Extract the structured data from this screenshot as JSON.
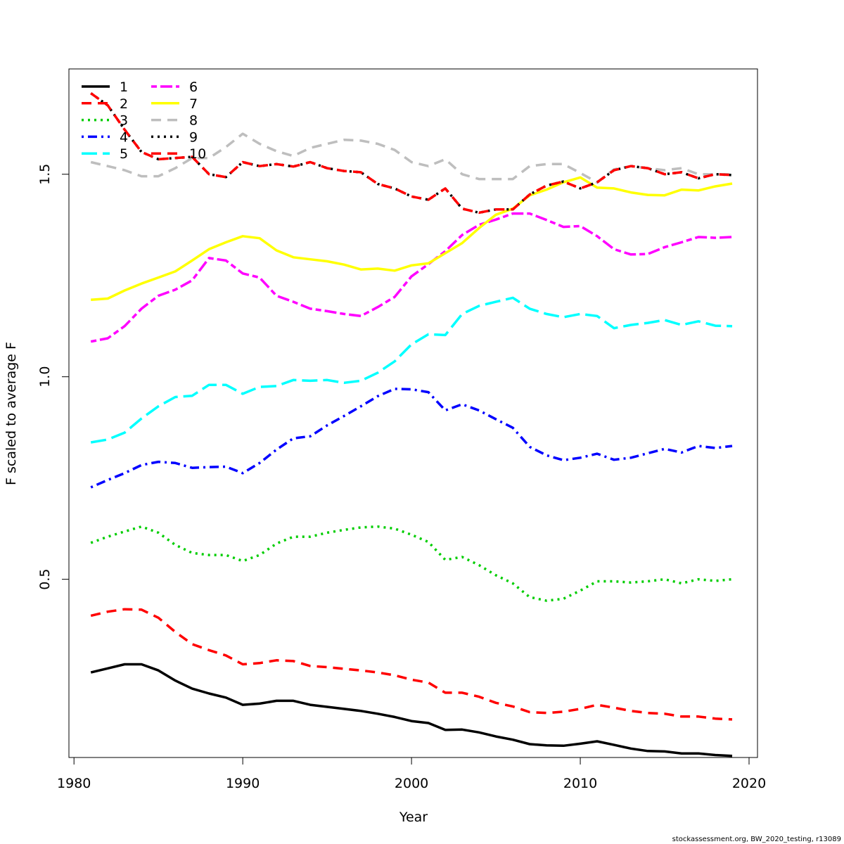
{
  "chart_data": {
    "type": "line",
    "title": "",
    "xlabel": "Year",
    "ylabel": "F scaled to average F",
    "xlim": [
      1979.7,
      2020.5
    ],
    "ylim": [
      0.06,
      1.76
    ],
    "x_ticks": [
      1980,
      1990,
      2000,
      2010,
      2020
    ],
    "y_ticks": [
      0.5,
      1.0,
      1.5
    ],
    "y_tick_labels": [
      "0.5",
      "1.0",
      "1.5"
    ],
    "grid": false,
    "legend_position": "top-left",
    "legend_columns": 2,
    "x": [
      1981,
      1982,
      1983,
      1984,
      1985,
      1986,
      1987,
      1988,
      1989,
      1990,
      1991,
      1992,
      1993,
      1994,
      1995,
      1996,
      1997,
      1998,
      1999,
      2000,
      2001,
      2002,
      2003,
      2004,
      2005,
      2006,
      2007,
      2008,
      2009,
      2010,
      2011,
      2012,
      2013,
      2014,
      2015,
      2016,
      2017,
      2018,
      2019
    ],
    "series": [
      {
        "name": "1",
        "color": "#000000",
        "dash": "solid",
        "values": [
          0.27,
          0.28,
          0.29,
          0.29,
          0.275,
          0.25,
          0.23,
          0.218,
          0.208,
          0.19,
          0.193,
          0.2,
          0.2,
          0.19,
          0.185,
          0.18,
          0.175,
          0.168,
          0.16,
          0.15,
          0.145,
          0.128,
          0.129,
          0.122,
          0.112,
          0.104,
          0.093,
          0.09,
          0.089,
          0.094,
          0.1,
          0.091,
          0.082,
          0.076,
          0.075,
          0.07,
          0.07,
          0.066,
          0.064
        ]
      },
      {
        "name": "2",
        "color": "#ff0000",
        "dash": "dashed",
        "values": [
          0.41,
          0.42,
          0.426,
          0.425,
          0.405,
          0.37,
          0.34,
          0.325,
          0.312,
          0.29,
          0.293,
          0.3,
          0.298,
          0.286,
          0.283,
          0.279,
          0.275,
          0.27,
          0.263,
          0.252,
          0.245,
          0.22,
          0.22,
          0.21,
          0.195,
          0.186,
          0.172,
          0.17,
          0.173,
          0.18,
          0.19,
          0.183,
          0.175,
          0.17,
          0.168,
          0.161,
          0.161,
          0.156,
          0.154
        ]
      },
      {
        "name": "3",
        "color": "#00cd00",
        "dash": "dotted",
        "values": [
          0.59,
          0.605,
          0.618,
          0.63,
          0.615,
          0.585,
          0.565,
          0.56,
          0.56,
          0.545,
          0.56,
          0.588,
          0.605,
          0.605,
          0.615,
          0.622,
          0.628,
          0.63,
          0.625,
          0.61,
          0.592,
          0.548,
          0.555,
          0.535,
          0.51,
          0.49,
          0.456,
          0.447,
          0.452,
          0.472,
          0.495,
          0.495,
          0.492,
          0.495,
          0.5,
          0.49,
          0.5,
          0.496,
          0.5
        ]
      },
      {
        "name": "4",
        "color": "#0000ff",
        "dash": "dotdash",
        "values": [
          0.727,
          0.745,
          0.762,
          0.782,
          0.79,
          0.787,
          0.775,
          0.777,
          0.778,
          0.762,
          0.787,
          0.82,
          0.848,
          0.853,
          0.88,
          0.903,
          0.927,
          0.952,
          0.97,
          0.969,
          0.962,
          0.917,
          0.932,
          0.917,
          0.895,
          0.874,
          0.827,
          0.806,
          0.794,
          0.8,
          0.81,
          0.795,
          0.8,
          0.811,
          0.822,
          0.813,
          0.829,
          0.824,
          0.829
        ]
      },
      {
        "name": "5",
        "color": "#00ffff",
        "dash": "longdash",
        "values": [
          0.838,
          0.845,
          0.862,
          0.897,
          0.927,
          0.95,
          0.953,
          0.98,
          0.98,
          0.958,
          0.975,
          0.977,
          0.992,
          0.99,
          0.992,
          0.985,
          0.99,
          1.01,
          1.038,
          1.08,
          1.105,
          1.103,
          1.155,
          1.175,
          1.185,
          1.195,
          1.168,
          1.155,
          1.147,
          1.155,
          1.15,
          1.12,
          1.128,
          1.133,
          1.14,
          1.128,
          1.137,
          1.126,
          1.125
        ]
      },
      {
        "name": "6",
        "color": "#ff00ff",
        "dash": "twodash",
        "values": [
          1.087,
          1.095,
          1.125,
          1.168,
          1.2,
          1.215,
          1.238,
          1.293,
          1.287,
          1.255,
          1.245,
          1.2,
          1.185,
          1.168,
          1.162,
          1.155,
          1.15,
          1.172,
          1.197,
          1.248,
          1.278,
          1.31,
          1.35,
          1.375,
          1.388,
          1.403,
          1.403,
          1.387,
          1.37,
          1.372,
          1.347,
          1.315,
          1.302,
          1.303,
          1.32,
          1.332,
          1.345,
          1.343,
          1.345
        ]
      },
      {
        "name": "7",
        "color": "#ffff00",
        "dash": "solid",
        "values": [
          1.19,
          1.193,
          1.213,
          1.23,
          1.245,
          1.26,
          1.287,
          1.315,
          1.332,
          1.347,
          1.342,
          1.312,
          1.295,
          1.29,
          1.285,
          1.277,
          1.265,
          1.267,
          1.262,
          1.275,
          1.28,
          1.305,
          1.33,
          1.367,
          1.4,
          1.415,
          1.448,
          1.462,
          1.48,
          1.492,
          1.467,
          1.465,
          1.455,
          1.449,
          1.448,
          1.462,
          1.46,
          1.47,
          1.477
        ]
      },
      {
        "name": "8",
        "color": "#bebebe",
        "dash": "dashed",
        "values": [
          1.53,
          1.52,
          1.51,
          1.495,
          1.495,
          1.515,
          1.54,
          1.54,
          1.567,
          1.6,
          1.575,
          1.557,
          1.545,
          1.565,
          1.575,
          1.585,
          1.583,
          1.575,
          1.56,
          1.53,
          1.52,
          1.537,
          1.5,
          1.488,
          1.488,
          1.488,
          1.52,
          1.525,
          1.525,
          1.503,
          1.48,
          1.512,
          1.52,
          1.515,
          1.51,
          1.515,
          1.5,
          1.5,
          1.5
        ]
      },
      {
        "name": "9",
        "color": "#000000",
        "dash": "dotted",
        "values": [
          1.7,
          1.67,
          1.61,
          1.555,
          1.537,
          1.54,
          1.543,
          1.5,
          1.493,
          1.53,
          1.52,
          1.525,
          1.519,
          1.53,
          1.515,
          1.508,
          1.505,
          1.476,
          1.465,
          1.445,
          1.437,
          1.465,
          1.415,
          1.405,
          1.413,
          1.413,
          1.45,
          1.472,
          1.482,
          1.465,
          1.48,
          1.51,
          1.52,
          1.515,
          1.5,
          1.505,
          1.49,
          1.5,
          1.498
        ]
      },
      {
        "name": "10",
        "color": "#ff0000",
        "dash": "dashed",
        "values": [
          1.7,
          1.67,
          1.61,
          1.555,
          1.537,
          1.54,
          1.543,
          1.5,
          1.493,
          1.53,
          1.52,
          1.525,
          1.519,
          1.53,
          1.515,
          1.508,
          1.505,
          1.476,
          1.465,
          1.445,
          1.437,
          1.465,
          1.415,
          1.405,
          1.413,
          1.413,
          1.45,
          1.472,
          1.482,
          1.465,
          1.48,
          1.51,
          1.52,
          1.515,
          1.5,
          1.505,
          1.49,
          1.5,
          1.498
        ]
      }
    ]
  },
  "credit": "stockassessment.org, BW_2020_testing, r13089"
}
